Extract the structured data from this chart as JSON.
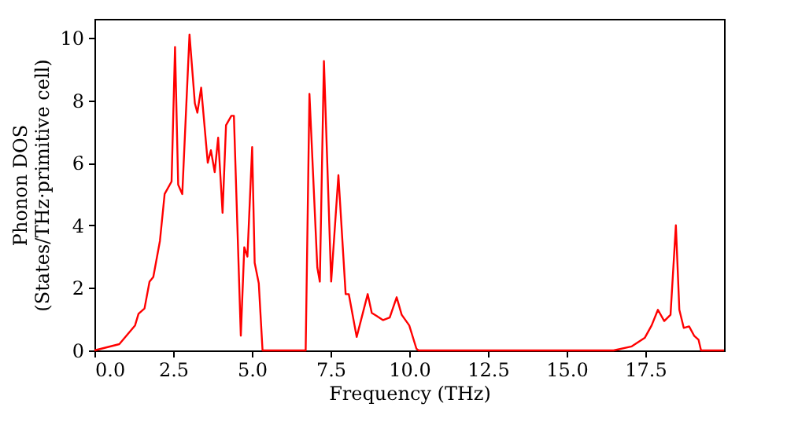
{
  "chart_data": {
    "type": "line",
    "xlabel": "Frequency (THz)",
    "ylabel": "Phonon DOS\n(States/THz·primitive cell)",
    "x": [
      0,
      0.79,
      1.29,
      1.4,
      1.59,
      1.75,
      1.87,
      2.08,
      2.23,
      2.45,
      2.56,
      2.66,
      2.79,
      3.02,
      3.19,
      3.27,
      3.39,
      3.6,
      3.7,
      3.82,
      3.93,
      4.07,
      4.18,
      4.35,
      4.43,
      4.65,
      4.76,
      4.86,
      5.01,
      5.09,
      5.22,
      5.34,
      6.71,
      6.83,
      7.08,
      7.16,
      7.29,
      7.52,
      7.75,
      7.98,
      8.08,
      8.33,
      8.68,
      8.81,
      8.97,
      9.17,
      9.38,
      9.6,
      9.76,
      10.0,
      10.23,
      10.3,
      16.49,
      17.07,
      17.48,
      17.7,
      17.9,
      18.1,
      18.3,
      18.47,
      18.58,
      18.72,
      18.89,
      19.05,
      19.19,
      19.27,
      20
    ],
    "series": [
      {
        "color": "#ff0000",
        "values": [
          0,
          0.2,
          0.8,
          1.17,
          1.34,
          2.2,
          2.35,
          3.5,
          5.0,
          5.4,
          9.7,
          5.3,
          5.0,
          10.1,
          7.9,
          7.6,
          8.4,
          6.0,
          6.4,
          5.7,
          6.8,
          4.4,
          7.2,
          7.5,
          7.5,
          0.47,
          3.3,
          3.0,
          6.5,
          2.8,
          2.15,
          0,
          0,
          8.2,
          2.65,
          2.2,
          9.25,
          2.2,
          5.6,
          1.8,
          1.8,
          0.43,
          1.8,
          1.2,
          1.1,
          0.97,
          1.05,
          1.7,
          1.14,
          0.8,
          0.05,
          0,
          0,
          0.13,
          0.4,
          0.8,
          1.3,
          0.94,
          1.14,
          4.0,
          1.3,
          0.72,
          0.77,
          0.47,
          0.34,
          0,
          0
        ]
      }
    ],
    "xlim": [
      0,
      20
    ],
    "ylim": [
      0,
      10.6
    ],
    "xticks": [
      {
        "value": 0,
        "label": "0.0"
      },
      {
        "value": 2.5,
        "label": "2.5"
      },
      {
        "value": 5,
        "label": "5.0"
      },
      {
        "value": 7.5,
        "label": "7.5"
      },
      {
        "value": 10,
        "label": "10.0"
      },
      {
        "value": 12.5,
        "label": "12.5"
      },
      {
        "value": 15,
        "label": "15.0"
      },
      {
        "value": 17.5,
        "label": "17.5"
      }
    ],
    "yticks": [
      0,
      2,
      4,
      6,
      8,
      10
    ],
    "line_style": "solid",
    "marker": "none",
    "grid": false
  }
}
